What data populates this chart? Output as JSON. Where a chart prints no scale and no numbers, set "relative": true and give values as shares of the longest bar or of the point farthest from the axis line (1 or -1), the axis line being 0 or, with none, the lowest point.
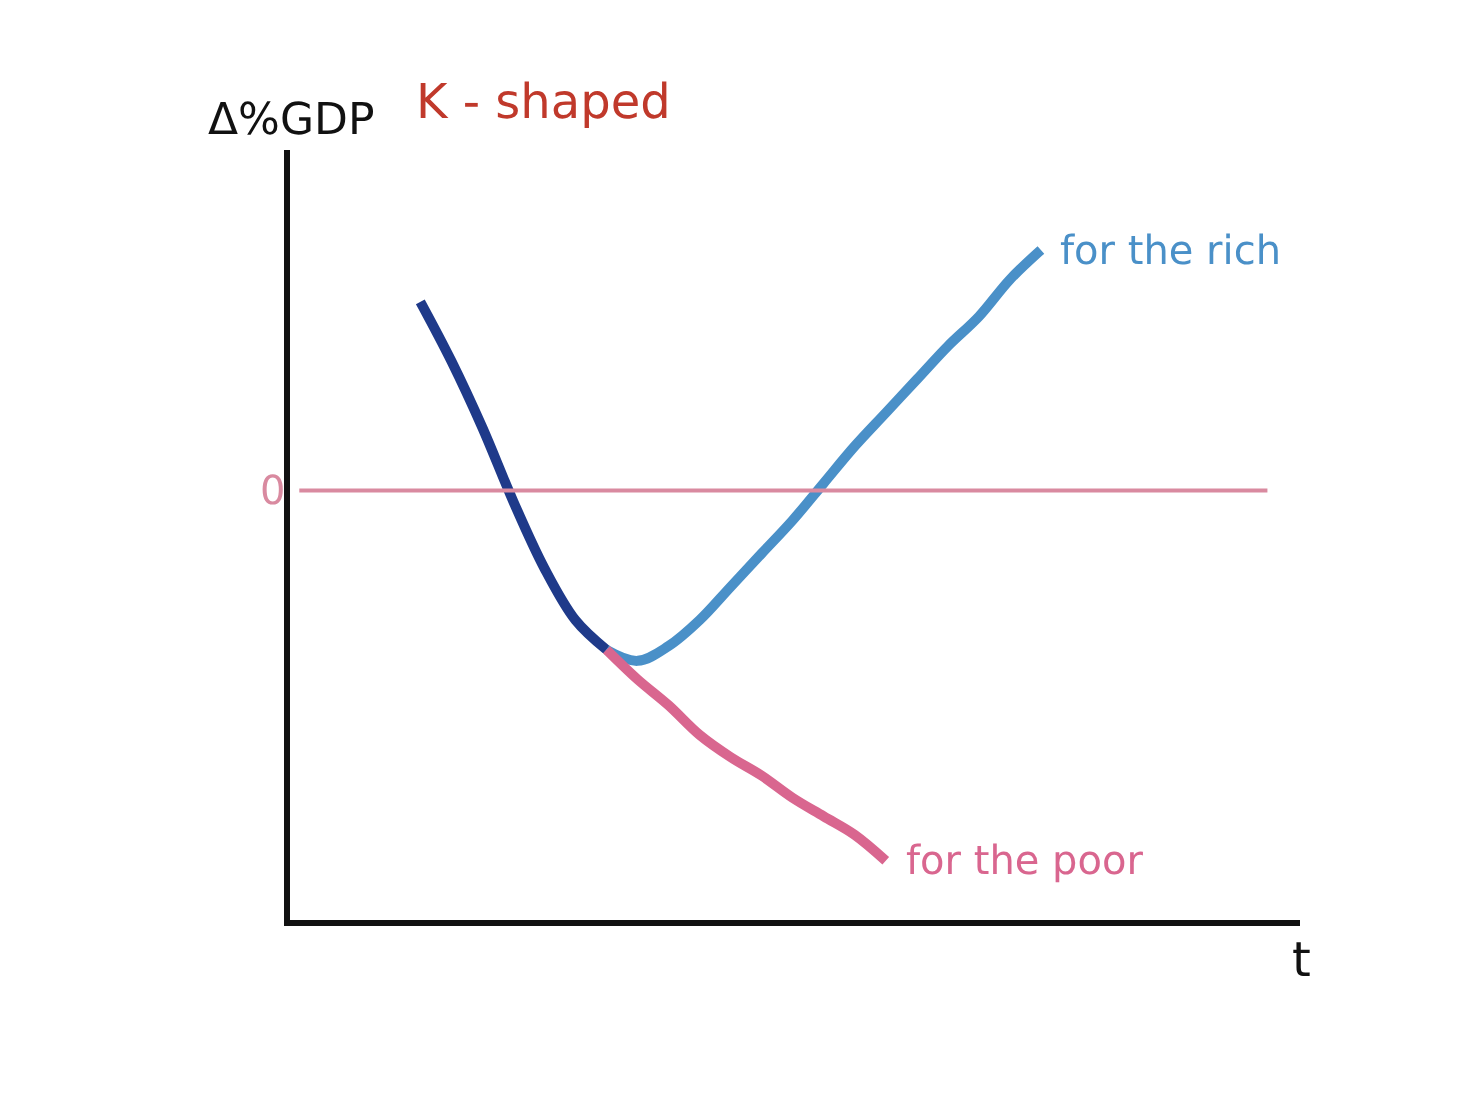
{
  "chart_data": {
    "type": "line",
    "title": "K - shaped",
    "annotations": [
      "t"
    ],
    "ylabel": "Δ%GDP",
    "relative": true,
    "legend": false,
    "marker": "none",
    "line_style": "solid",
    "categories": [
      null,
      null,
      null,
      null,
      null,
      null,
      null,
      null,
      null,
      null,
      null,
      null,
      null,
      null,
      null,
      null,
      null,
      null,
      null,
      null,
      null
    ],
    "series": [
      {
        "color": "#1f3a8a",
        "values": [
          0.51,
          0.35,
          0.17,
          -0.03,
          -0.21,
          -0.35,
          -0.43,
          null,
          null,
          null,
          null,
          null,
          null,
          null,
          null,
          null,
          null,
          null,
          null,
          null,
          null
        ]
      },
      {
        "name": "for the rich",
        "color": "#4a90c8",
        "values": [
          null,
          null,
          null,
          null,
          null,
          null,
          -0.43,
          -0.46,
          -0.42,
          -0.35,
          -0.26,
          -0.17,
          -0.08,
          0.02,
          0.12,
          0.21,
          0.3,
          0.39,
          0.47,
          0.57,
          0.65
        ]
      },
      {
        "name": "for the poor",
        "color": "#d9668f",
        "values": [
          null,
          null,
          null,
          null,
          null,
          null,
          -0.43,
          -0.51,
          -0.58,
          -0.66,
          -0.72,
          -0.77,
          -0.83,
          -0.88,
          -0.93,
          -1.0,
          null,
          null,
          null,
          null,
          null
        ]
      }
    ],
    "ref_lines": [
      {
        "axis": "y",
        "value": 0,
        "label": "0",
        "color": "#d98aa0"
      }
    ]
  }
}
